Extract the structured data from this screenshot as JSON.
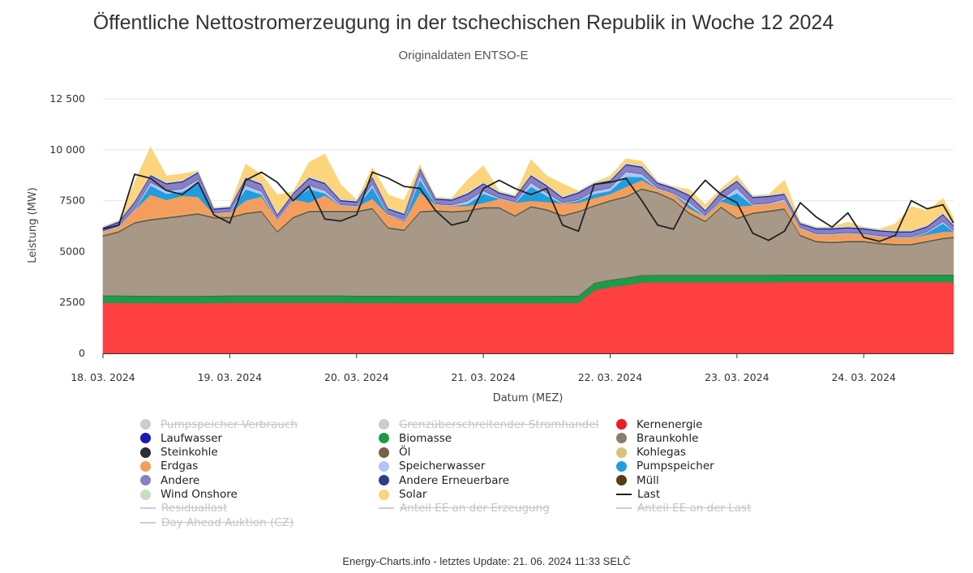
{
  "title": "Öffentliche Nettostromerzeugung in der tschechischen Republik in Woche 12 2024",
  "subtitle": "Originaldaten ENTSO-E",
  "footer": "Energy-Charts.info - letztes Update: 21. 06. 2024 11:33 SELČ",
  "chart_data": {
    "type": "area",
    "stacked": true,
    "xlabel": "Datum (MEZ)",
    "ylabel": "Leistung (MW)",
    "ylim": [
      0,
      12500
    ],
    "y_ticks": [
      0,
      2500,
      5000,
      7500,
      10000,
      12500
    ],
    "y_tick_labels": [
      "0",
      "2500",
      "5000",
      "7500",
      "10 000",
      "12 500"
    ],
    "x_hours": [
      0,
      3,
      6,
      9,
      12,
      15,
      18,
      21,
      24,
      27,
      30,
      33,
      36,
      39,
      42,
      45,
      48,
      51,
      54,
      57,
      60,
      63,
      66,
      69,
      72,
      75,
      78,
      81,
      84,
      87,
      90,
      93,
      96,
      99,
      102,
      105,
      108,
      111,
      114,
      117,
      120,
      123,
      126,
      129,
      132,
      135,
      138,
      141,
      144,
      147,
      150,
      153,
      156,
      159,
      162
    ],
    "x_range_hours": [
      0,
      161
    ],
    "x_ticks": [
      {
        "hour": 0,
        "label": "18. 03. 2024"
      },
      {
        "hour": 24,
        "label": "19. 03. 2024"
      },
      {
        "hour": 48,
        "label": "20. 03. 2024"
      },
      {
        "hour": 72,
        "label": "21. 03. 2024"
      },
      {
        "hour": 96,
        "label": "22. 03. 2024"
      },
      {
        "hour": 120,
        "label": "23. 03. 2024"
      },
      {
        "hour": 144,
        "label": "24. 03. 2024"
      }
    ],
    "series": [
      {
        "name": "Kernenergie",
        "color": "#ff4040",
        "values": [
          2480,
          2480,
          2470,
          2470,
          2460,
          2460,
          2460,
          2470,
          2480,
          2480,
          2480,
          2480,
          2480,
          2480,
          2480,
          2480,
          2470,
          2470,
          2470,
          2460,
          2460,
          2460,
          2460,
          2460,
          2460,
          2460,
          2460,
          2460,
          2460,
          2470,
          2470,
          3100,
          3250,
          3350,
          3480,
          3490,
          3490,
          3490,
          3490,
          3490,
          3490,
          3490,
          3490,
          3500,
          3500,
          3500,
          3500,
          3500,
          3500,
          3500,
          3500,
          3500,
          3500,
          3500,
          3500
        ]
      },
      {
        "name": "Biomasse",
        "color": "#1e9a4a",
        "values": [
          350,
          350,
          350,
          350,
          350,
          350,
          350,
          350,
          350,
          350,
          350,
          350,
          350,
          350,
          350,
          350,
          350,
          350,
          350,
          350,
          350,
          350,
          350,
          350,
          350,
          350,
          350,
          350,
          350,
          350,
          350,
          350,
          350,
          350,
          350,
          350,
          350,
          350,
          350,
          350,
          350,
          350,
          350,
          350,
          350,
          350,
          350,
          350,
          350,
          350,
          350,
          350,
          350,
          350,
          350
        ]
      },
      {
        "name": "Müll",
        "color": "#5a3c14",
        "values": [
          20,
          20,
          20,
          20,
          20,
          20,
          20,
          20,
          20,
          20,
          20,
          20,
          20,
          20,
          20,
          20,
          20,
          20,
          20,
          20,
          20,
          20,
          20,
          20,
          20,
          20,
          20,
          20,
          20,
          20,
          20,
          20,
          20,
          20,
          20,
          20,
          20,
          20,
          20,
          20,
          20,
          20,
          20,
          20,
          20,
          20,
          20,
          20,
          20,
          20,
          20,
          20,
          20,
          20,
          20
        ]
      },
      {
        "name": "Braunkohle",
        "color": "#a89888",
        "values": [
          2900,
          3100,
          3550,
          3700,
          3800,
          3900,
          4000,
          3800,
          3800,
          4000,
          4100,
          3100,
          3800,
          4100,
          4100,
          4100,
          4100,
          4250,
          3300,
          3200,
          4100,
          4150,
          4100,
          4150,
          4300,
          4300,
          3900,
          4350,
          4200,
          3900,
          4100,
          3750,
          3850,
          3950,
          4200,
          4000,
          3650,
          3000,
          2600,
          3300,
          2750,
          3000,
          3100,
          3200,
          1900,
          1600,
          1550,
          1600,
          1600,
          1500,
          1450,
          1450,
          1600,
          1750,
          1800
        ]
      },
      {
        "name": "Steinkohle",
        "color": "#2e2e2e",
        "values": [
          10,
          10,
          10,
          10,
          10,
          10,
          10,
          10,
          10,
          10,
          10,
          10,
          10,
          10,
          10,
          10,
          10,
          10,
          10,
          10,
          10,
          10,
          10,
          10,
          10,
          10,
          10,
          10,
          10,
          10,
          10,
          10,
          10,
          10,
          10,
          10,
          10,
          10,
          10,
          10,
          10,
          10,
          10,
          10,
          10,
          10,
          10,
          10,
          10,
          10,
          10,
          10,
          10,
          10,
          10
        ]
      },
      {
        "name": "Öl",
        "color": "#7a6048",
        "values": [
          60,
          60,
          60,
          60,
          60,
          60,
          60,
          60,
          60,
          60,
          60,
          60,
          60,
          60,
          60,
          60,
          60,
          60,
          60,
          60,
          60,
          60,
          60,
          60,
          60,
          60,
          60,
          60,
          60,
          60,
          60,
          60,
          60,
          60,
          60,
          60,
          60,
          60,
          60,
          60,
          60,
          60,
          60,
          60,
          60,
          60,
          60,
          60,
          60,
          60,
          60,
          60,
          60,
          60,
          60
        ]
      },
      {
        "name": "Kohlegas",
        "color": "#d8c27a",
        "values": [
          40,
          40,
          40,
          40,
          40,
          40,
          40,
          40,
          40,
          40,
          40,
          40,
          40,
          40,
          40,
          40,
          40,
          40,
          40,
          40,
          40,
          40,
          40,
          40,
          40,
          40,
          40,
          40,
          40,
          40,
          40,
          40,
          40,
          40,
          40,
          40,
          40,
          40,
          40,
          40,
          40,
          40,
          40,
          40,
          40,
          40,
          40,
          40,
          40,
          40,
          40,
          40,
          40,
          40,
          40
        ]
      },
      {
        "name": "Erdgas",
        "color": "#f49d5c",
        "values": [
          100,
          150,
          550,
          1150,
          800,
          900,
          750,
          100,
          150,
          550,
          650,
          500,
          800,
          350,
          700,
          200,
          150,
          400,
          550,
          350,
          850,
          200,
          200,
          150,
          150,
          350,
          550,
          200,
          300,
          500,
          350,
          300,
          250,
          400,
          350,
          100,
          200,
          150,
          150,
          200,
          500,
          300,
          250,
          300,
          250,
          250,
          300,
          300,
          250,
          250,
          250,
          250,
          250,
          250,
          200
        ]
      },
      {
        "name": "Pumpspeicher",
        "color": "#1e9ee0",
        "values": [
          0,
          0,
          0,
          450,
          300,
          200,
          650,
          0,
          0,
          550,
          100,
          0,
          0,
          650,
          100,
          0,
          0,
          550,
          0,
          50,
          650,
          0,
          0,
          100,
          450,
          0,
          0,
          700,
          300,
          0,
          100,
          200,
          150,
          500,
          150,
          0,
          0,
          150,
          0,
          50,
          650,
          0,
          0,
          0,
          0,
          0,
          0,
          0,
          0,
          0,
          0,
          0,
          100,
          400,
          0
        ]
      },
      {
        "name": "Speicherwasser",
        "color": "#aec6f0",
        "values": [
          50,
          50,
          50,
          150,
          150,
          150,
          200,
          50,
          50,
          200,
          150,
          50,
          50,
          200,
          150,
          50,
          50,
          150,
          50,
          50,
          200,
          50,
          50,
          150,
          150,
          50,
          50,
          200,
          150,
          50,
          50,
          150,
          150,
          250,
          150,
          50,
          50,
          150,
          50,
          50,
          250,
          50,
          50,
          100,
          50,
          50,
          50,
          50,
          50,
          50,
          50,
          50,
          50,
          100,
          50
        ]
      },
      {
        "name": "Andere Erneuerbare",
        "color": "#2e3b8e",
        "values": [
          20,
          20,
          20,
          20,
          20,
          20,
          20,
          20,
          20,
          20,
          20,
          20,
          20,
          20,
          20,
          20,
          20,
          20,
          20,
          20,
          20,
          20,
          20,
          20,
          20,
          20,
          20,
          20,
          20,
          20,
          20,
          20,
          20,
          20,
          20,
          20,
          20,
          20,
          20,
          20,
          20,
          20,
          20,
          20,
          20,
          20,
          20,
          20,
          20,
          20,
          20,
          20,
          20,
          20,
          20
        ]
      },
      {
        "name": "Andere",
        "color": "#8a7fbf",
        "values": [
          100,
          150,
          300,
          300,
          300,
          300,
          300,
          150,
          150,
          300,
          300,
          150,
          200,
          300,
          300,
          150,
          150,
          300,
          200,
          200,
          300,
          200,
          200,
          300,
          300,
          200,
          200,
          300,
          300,
          200,
          300,
          300,
          300,
          300,
          300,
          200,
          200,
          300,
          200,
          300,
          300,
          300,
          300,
          200,
          150,
          200,
          200,
          200,
          200,
          200,
          200,
          200,
          200,
          300,
          200
        ]
      },
      {
        "name": "Laufwasser",
        "color": "#1a1ab4",
        "values": [
          50,
          50,
          50,
          50,
          50,
          50,
          50,
          50,
          50,
          50,
          50,
          50,
          50,
          50,
          50,
          50,
          50,
          50,
          50,
          50,
          50,
          50,
          50,
          50,
          50,
          50,
          50,
          50,
          50,
          50,
          50,
          50,
          50,
          50,
          50,
          50,
          50,
          50,
          50,
          50,
          50,
          50,
          50,
          50,
          50,
          50,
          50,
          50,
          50,
          50,
          50,
          50,
          50,
          50,
          50
        ]
      },
      {
        "name": "Wind Onshore",
        "color": "#c6dfc0",
        "values": [
          50,
          50,
          50,
          60,
          60,
          60,
          60,
          50,
          50,
          60,
          60,
          60,
          60,
          60,
          60,
          60,
          60,
          60,
          60,
          60,
          60,
          60,
          60,
          60,
          60,
          60,
          60,
          60,
          60,
          60,
          60,
          60,
          60,
          60,
          60,
          60,
          60,
          60,
          60,
          60,
          60,
          60,
          60,
          60,
          60,
          60,
          60,
          60,
          60,
          60,
          60,
          60,
          60,
          60,
          60
        ]
      },
      {
        "name": "Solar",
        "color": "#fbd47c",
        "values": [
          0,
          0,
          900,
          1300,
          300,
          300,
          0,
          0,
          0,
          600,
          400,
          900,
          0,
          700,
          1350,
          700,
          0,
          400,
          600,
          600,
          100,
          0,
          0,
          600,
          800,
          0,
          0,
          700,
          400,
          600,
          0,
          0,
          150,
          200,
          200,
          0,
          0,
          200,
          200,
          100,
          200,
          0,
          0,
          600,
          0,
          0,
          0,
          200,
          0,
          0,
          300,
          1150,
          700,
          700,
          300
        ]
      }
    ],
    "line_series": [
      {
        "name": "Last",
        "color": "#222222",
        "values": [
          6100,
          6300,
          8800,
          8600,
          8000,
          7800,
          8400,
          6800,
          6400,
          8500,
          8900,
          8400,
          7500,
          8200,
          6600,
          6500,
          6800,
          8900,
          8600,
          8200,
          8100,
          7000,
          6300,
          6500,
          8100,
          8500,
          8100,
          7800,
          8100,
          6300,
          6000,
          8300,
          8400,
          8600,
          7500,
          6300,
          6100,
          7600,
          8500,
          7800,
          7400,
          5900,
          5550,
          6000,
          7400,
          6700,
          6200,
          6900,
          5700,
          5500,
          5800,
          7500,
          7100,
          7300,
          6400
        ]
      }
    ],
    "legend": [
      {
        "name": "Pumpspeicher Verbrauch",
        "color": "#cccccc",
        "marker": "dot",
        "hidden": true
      },
      {
        "name": "Grenzüberschreitender Stromhandel",
        "color": "#cccccc",
        "marker": "dot",
        "hidden": true
      },
      {
        "name": "Kernenergie",
        "color": "#ee1c25",
        "marker": "dot",
        "hidden": false
      },
      {
        "name": "Laufwasser",
        "color": "#1a1ab4",
        "marker": "dot",
        "hidden": false
      },
      {
        "name": "Biomasse",
        "color": "#1e9a4a",
        "marker": "dot",
        "hidden": false
      },
      {
        "name": "Braunkohle",
        "color": "#8c7b6b",
        "marker": "dot",
        "hidden": false
      },
      {
        "name": "Steinkohle",
        "color": "#2e2e2e",
        "marker": "dot",
        "hidden": false
      },
      {
        "name": "Öl",
        "color": "#7a6048",
        "marker": "dot",
        "hidden": false
      },
      {
        "name": "Kohlegas",
        "color": "#d8c27a",
        "marker": "dot",
        "hidden": false
      },
      {
        "name": "Erdgas",
        "color": "#f49d5c",
        "marker": "dot",
        "hidden": false
      },
      {
        "name": "Speicherwasser",
        "color": "#aec6f0",
        "marker": "dot",
        "hidden": false
      },
      {
        "name": "Pumpspeicher",
        "color": "#1e9ee0",
        "marker": "dot",
        "hidden": false
      },
      {
        "name": "Andere",
        "color": "#8a7fbf",
        "marker": "dot",
        "hidden": false
      },
      {
        "name": "Andere Erneuerbare",
        "color": "#2e3b8e",
        "marker": "dot",
        "hidden": false
      },
      {
        "name": "Müll",
        "color": "#5a3c14",
        "marker": "dot",
        "hidden": false
      },
      {
        "name": "Wind Onshore",
        "color": "#c6dfc0",
        "marker": "dot",
        "hidden": false
      },
      {
        "name": "Solar",
        "color": "#fbd47c",
        "marker": "dot",
        "hidden": false
      },
      {
        "name": "Last",
        "color": "#222222",
        "marker": "line",
        "hidden": false
      },
      {
        "name": "Residuallast",
        "color": "#cccccc",
        "marker": "line",
        "hidden": true
      },
      {
        "name": "Anteil EE an der Erzeugung",
        "color": "#cccccc",
        "marker": "line",
        "hidden": true
      },
      {
        "name": "Anteil EE an der Last",
        "color": "#cccccc",
        "marker": "line",
        "hidden": true
      },
      {
        "name": "Day Ahead Auktion (CZ)",
        "color": "#cccccc",
        "marker": "line",
        "hidden": true
      }
    ]
  }
}
